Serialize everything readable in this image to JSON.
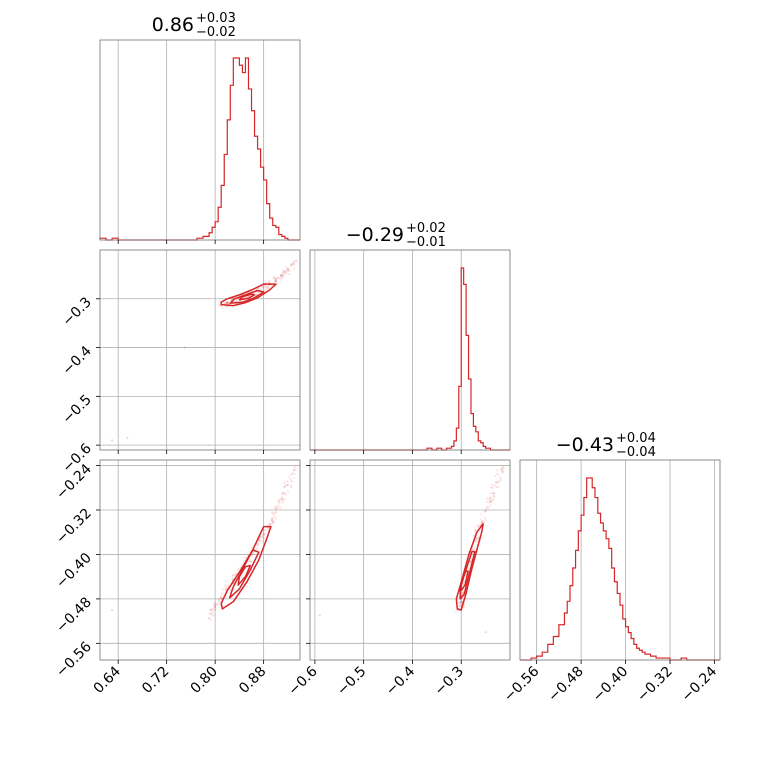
{
  "chart_data": {
    "type": "corner",
    "color": "#d62728",
    "grid": true,
    "parameters": [
      {
        "title_value": "0.86",
        "title_plus": "+0.03",
        "title_minus": "−0.02",
        "lim": [
          0.61,
          0.94
        ]
      },
      {
        "title_value": "−0.29",
        "title_plus": "+0.02",
        "title_minus": "−0.01",
        "lim": [
          -0.61,
          -0.2
        ]
      },
      {
        "title_value": "−0.43",
        "title_plus": "+0.04",
        "title_minus": "−0.04",
        "lim": [
          -0.59,
          -0.23
        ]
      }
    ],
    "ticks": {
      "x0": {
        "values": [
          0.64,
          0.72,
          0.8,
          0.88
        ],
        "labels": [
          "0.64",
          "0.72",
          "0.80",
          "0.88"
        ]
      },
      "x1": {
        "values": [
          -0.6,
          -0.5,
          -0.4,
          -0.3
        ],
        "labels": [
          "−0.6",
          "−0.5",
          "−0.4",
          "−0.3"
        ]
      },
      "x2": {
        "values": [
          -0.56,
          -0.48,
          -0.4,
          -0.32,
          -0.24
        ],
        "labels": [
          "−0.56",
          "−0.48",
          "−0.40",
          "−0.32",
          "−0.24"
        ]
      },
      "y1": {
        "values": [
          -0.3,
          -0.4,
          -0.5,
          -0.6
        ],
        "labels": [
          "−0.3",
          "−0.4",
          "−0.5",
          "−0.6"
        ]
      },
      "y2": {
        "values": [
          -0.24,
          -0.32,
          -0.4,
          -0.48,
          -0.56
        ],
        "labels": [
          "−0.24",
          "−0.32",
          "−0.40",
          "−0.48",
          "−0.56"
        ]
      }
    },
    "histograms": [
      {
        "param": 0,
        "bin_edges": [
          0.61,
          0.62,
          0.63,
          0.64,
          0.65,
          0.66,
          0.77,
          0.78,
          0.79,
          0.795,
          0.8,
          0.805,
          0.81,
          0.815,
          0.82,
          0.825,
          0.83,
          0.835,
          0.84,
          0.845,
          0.85,
          0.855,
          0.86,
          0.865,
          0.87,
          0.875,
          0.88,
          0.885,
          0.89,
          0.895,
          0.9,
          0.905,
          0.91,
          0.915,
          0.92,
          0.925,
          0.94
        ],
        "counts": [
          1,
          0,
          1,
          0,
          0,
          0,
          1,
          2,
          4,
          7,
          10,
          18,
          30,
          47,
          66,
          85,
          100,
          100,
          96,
          92,
          100,
          83,
          71,
          57,
          50,
          40,
          33,
          20,
          12,
          8,
          7,
          3,
          2,
          1,
          0,
          0
        ]
      },
      {
        "param": 1,
        "bin_edges": [
          -0.61,
          -0.37,
          -0.36,
          -0.35,
          -0.34,
          -0.33,
          -0.32,
          -0.315,
          -0.31,
          -0.305,
          -0.3,
          -0.295,
          -0.29,
          -0.285,
          -0.28,
          -0.275,
          -0.27,
          -0.265,
          -0.26,
          -0.255,
          -0.25,
          -0.245,
          -0.24,
          -0.235,
          -0.23,
          -0.225,
          -0.22,
          -0.215,
          -0.21,
          -0.2
        ],
        "counts": [
          0,
          1,
          0,
          1,
          0,
          1,
          2,
          5,
          12,
          35,
          100,
          91,
          63,
          39,
          20,
          13,
          10,
          5,
          4,
          2,
          1,
          1,
          0,
          0,
          0,
          0,
          0,
          0,
          0
        ]
      },
      {
        "param": 2,
        "bin_edges": [
          -0.59,
          -0.57,
          -0.56,
          -0.55,
          -0.54,
          -0.53,
          -0.52,
          -0.51,
          -0.505,
          -0.5,
          -0.495,
          -0.49,
          -0.485,
          -0.48,
          -0.475,
          -0.47,
          -0.465,
          -0.46,
          -0.455,
          -0.45,
          -0.445,
          -0.44,
          -0.435,
          -0.43,
          -0.425,
          -0.42,
          -0.415,
          -0.41,
          -0.405,
          -0.4,
          -0.395,
          -0.39,
          -0.385,
          -0.38,
          -0.375,
          -0.37,
          -0.365,
          -0.36,
          -0.355,
          -0.35,
          -0.345,
          -0.34,
          -0.335,
          -0.33,
          -0.325,
          -0.32,
          -0.31,
          -0.3,
          -0.29,
          -0.28,
          -0.27,
          -0.26,
          -0.25,
          -0.24,
          -0.23
        ],
        "counts": [
          0,
          1,
          2,
          4,
          8,
          12,
          18,
          24,
          30,
          38,
          47,
          56,
          66,
          74,
          83,
          93,
          93,
          88,
          83,
          75,
          70,
          66,
          62,
          57,
          47,
          40,
          34,
          28,
          21,
          17,
          14,
          11,
          8,
          6,
          5,
          4,
          3,
          3,
          2,
          2,
          1,
          1,
          1,
          1,
          1,
          0,
          0,
          1,
          0,
          0,
          0,
          0,
          0,
          0
        ]
      }
    ],
    "scatter": [
      {
        "x_param": 0,
        "y_param": 1,
        "core_points": [
          [
            0.81,
            -0.313
          ],
          [
            0.82,
            -0.31
          ],
          [
            0.83,
            -0.305
          ],
          [
            0.84,
            -0.3
          ],
          [
            0.85,
            -0.295
          ],
          [
            0.86,
            -0.29
          ],
          [
            0.87,
            -0.284
          ],
          [
            0.88,
            -0.277
          ],
          [
            0.89,
            -0.27
          ],
          [
            0.9,
            -0.262
          ],
          [
            0.91,
            -0.252
          ],
          [
            0.92,
            -0.24
          ],
          [
            0.93,
            -0.226
          ]
        ],
        "outliers": [
          [
            0.63,
            -0.59
          ],
          [
            0.655,
            -0.585
          ],
          [
            0.75,
            -0.4
          ]
        ],
        "contours": [
          {
            "points": [
              [
                0.81,
                -0.312
              ],
              [
                0.83,
                -0.314
              ],
              [
                0.85,
                -0.308
              ],
              [
                0.87,
                -0.298
              ],
              [
                0.89,
                -0.282
              ],
              [
                0.9,
                -0.27
              ],
              [
                0.88,
                -0.27
              ],
              [
                0.86,
                -0.282
              ],
              [
                0.84,
                -0.292
              ],
              [
                0.82,
                -0.3
              ],
              [
                0.81,
                -0.307
              ]
            ]
          },
          {
            "points": [
              [
                0.825,
                -0.309
              ],
              [
                0.845,
                -0.307
              ],
              [
                0.865,
                -0.298
              ],
              [
                0.88,
                -0.286
              ],
              [
                0.87,
                -0.283
              ],
              [
                0.85,
                -0.292
              ],
              [
                0.832,
                -0.3
              ]
            ]
          },
          {
            "points": [
              [
                0.84,
                -0.302
              ],
              [
                0.855,
                -0.299
              ],
              [
                0.865,
                -0.292
              ],
              [
                0.858,
                -0.291
              ],
              [
                0.845,
                -0.296
              ]
            ]
          }
        ]
      },
      {
        "x_param": 0,
        "y_param": 2,
        "core_points": [
          [
            0.79,
            -0.515
          ],
          [
            0.8,
            -0.495
          ],
          [
            0.81,
            -0.478
          ],
          [
            0.82,
            -0.463
          ],
          [
            0.83,
            -0.447
          ],
          [
            0.84,
            -0.432
          ],
          [
            0.85,
            -0.416
          ],
          [
            0.86,
            -0.4
          ],
          [
            0.87,
            -0.383
          ],
          [
            0.88,
            -0.365
          ],
          [
            0.89,
            -0.345
          ],
          [
            0.9,
            -0.324
          ],
          [
            0.91,
            -0.3
          ],
          [
            0.92,
            -0.275
          ],
          [
            0.93,
            -0.248
          ]
        ],
        "outliers": [
          [
            0.63,
            -0.5
          ]
        ],
        "contours": [
          {
            "points": [
              [
                0.812,
                -0.498
              ],
              [
                0.83,
                -0.485
              ],
              [
                0.852,
                -0.45
              ],
              [
                0.872,
                -0.41
              ],
              [
                0.885,
                -0.372
              ],
              [
                0.892,
                -0.35
              ],
              [
                0.88,
                -0.35
              ],
              [
                0.862,
                -0.392
              ],
              [
                0.84,
                -0.432
              ],
              [
                0.82,
                -0.465
              ],
              [
                0.81,
                -0.488
              ]
            ]
          },
          {
            "points": [
              [
                0.824,
                -0.478
              ],
              [
                0.84,
                -0.462
              ],
              [
                0.858,
                -0.428
              ],
              [
                0.872,
                -0.396
              ],
              [
                0.862,
                -0.392
              ],
              [
                0.846,
                -0.425
              ],
              [
                0.83,
                -0.458
              ]
            ]
          },
          {
            "points": [
              [
                0.838,
                -0.455
              ],
              [
                0.85,
                -0.44
              ],
              [
                0.858,
                -0.42
              ],
              [
                0.85,
                -0.422
              ],
              [
                0.84,
                -0.44
              ]
            ]
          }
        ]
      },
      {
        "x_param": 1,
        "y_param": 2,
        "core_points": [
          [
            -0.305,
            -0.5
          ],
          [
            -0.3,
            -0.485
          ],
          [
            -0.296,
            -0.468
          ],
          [
            -0.292,
            -0.45
          ],
          [
            -0.288,
            -0.432
          ],
          [
            -0.282,
            -0.412
          ],
          [
            -0.276,
            -0.392
          ],
          [
            -0.268,
            -0.37
          ],
          [
            -0.26,
            -0.348
          ],
          [
            -0.25,
            -0.322
          ],
          [
            -0.24,
            -0.298
          ],
          [
            -0.228,
            -0.27
          ],
          [
            -0.215,
            -0.245
          ]
        ],
        "outliers": [
          [
            -0.59,
            -0.51
          ],
          [
            -0.25,
            -0.54
          ]
        ],
        "contours": [
          {
            "points": [
              [
                -0.308,
                -0.498
              ],
              [
                -0.3,
                -0.5
              ],
              [
                -0.29,
                -0.47
              ],
              [
                -0.28,
                -0.432
              ],
              [
                -0.268,
                -0.392
              ],
              [
                -0.258,
                -0.36
              ],
              [
                -0.255,
                -0.345
              ],
              [
                -0.268,
                -0.36
              ],
              [
                -0.285,
                -0.402
              ],
              [
                -0.3,
                -0.45
              ],
              [
                -0.31,
                -0.48
              ]
            ]
          },
          {
            "points": [
              [
                -0.302,
                -0.48
              ],
              [
                -0.294,
                -0.472
              ],
              [
                -0.285,
                -0.44
              ],
              [
                -0.272,
                -0.395
              ],
              [
                -0.278,
                -0.395
              ],
              [
                -0.292,
                -0.432
              ],
              [
                -0.302,
                -0.462
              ]
            ]
          },
          {
            "points": [
              [
                -0.3,
                -0.465
              ],
              [
                -0.292,
                -0.455
              ],
              [
                -0.286,
                -0.43
              ],
              [
                -0.292,
                -0.43
              ],
              [
                -0.3,
                -0.45
              ]
            ]
          }
        ]
      }
    ]
  }
}
